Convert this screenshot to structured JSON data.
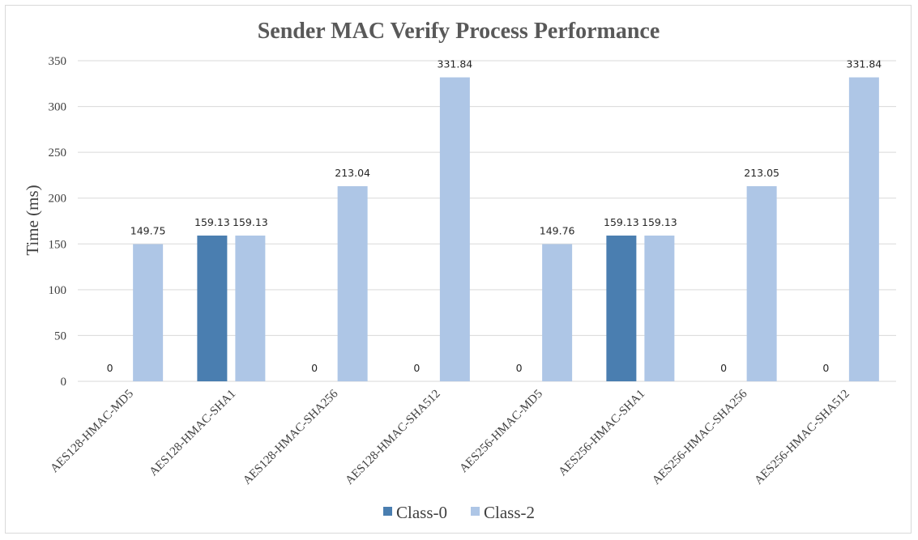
{
  "chart_data": {
    "type": "bar",
    "title": "Sender MAC Verify Process Performance",
    "xlabel": "",
    "ylabel": "Time (ms)",
    "ylim": [
      0,
      350
    ],
    "yticks": [
      0,
      50,
      100,
      150,
      200,
      250,
      300,
      350
    ],
    "grid": true,
    "legend_position": "bottom",
    "categories": [
      "AES128-HMAC-MD5",
      "AES128-HMAC-SHA1",
      "AES128-HMAC-SHA256",
      "AES128-HMAC-SHA512",
      "AES256-HMAC-MD5",
      "AES256-HMAC-SHA1",
      "AES256-HMAC-SHA256",
      "AES256-HMAC-SHA512"
    ],
    "series": [
      {
        "name": "Class-0",
        "color": "#4a7eb0",
        "values": [
          0,
          159.13,
          0,
          0,
          0,
          159.13,
          0,
          0
        ],
        "labels": [
          "0",
          "159.13",
          "0",
          "0",
          "0",
          "159.13",
          "0",
          "0"
        ]
      },
      {
        "name": "Class-2",
        "color": "#aec6e6",
        "values": [
          149.75,
          159.13,
          213.04,
          331.84,
          149.76,
          159.13,
          213.05,
          331.84
        ],
        "labels": [
          "149.75",
          "159.13",
          "213.04",
          "331.84",
          "149.76",
          "159.13",
          "213.05",
          "331.84"
        ]
      }
    ]
  }
}
